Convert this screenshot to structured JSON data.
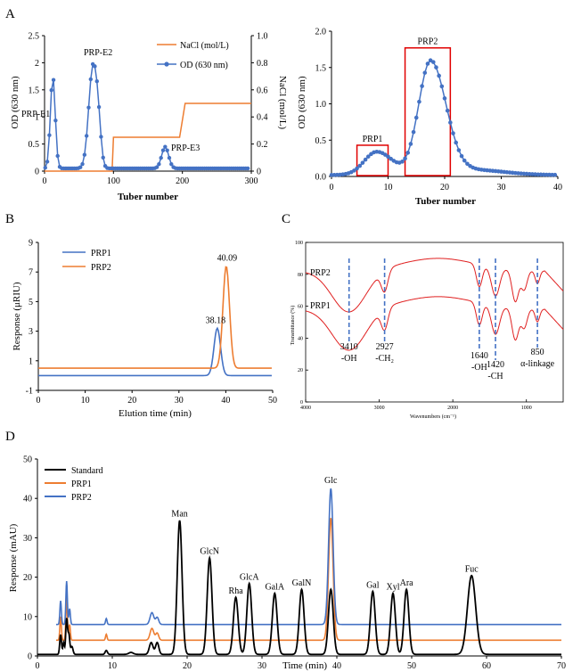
{
  "panels": {
    "A": "A",
    "B": "B",
    "C": "C",
    "D": "D"
  },
  "chart_data": [
    {
      "id": "A1",
      "type": "line",
      "xlabel": "Tuber number",
      "ylabel": "OD (630 nm)",
      "y2label": "NaCl (mol/L)",
      "xlim": [
        0,
        300
      ],
      "ylim": [
        0,
        2.5
      ],
      "y2lim": [
        0,
        1.0
      ],
      "xticks": [
        0,
        100,
        200,
        300
      ],
      "yticks": [
        0,
        0.5,
        1.0,
        1.5,
        2.0,
        2.5
      ],
      "y2ticks": [
        0,
        0.2,
        0.4,
        0.6,
        0.8,
        1.0
      ],
      "legend": [
        "NaCl (mol/L)",
        "OD (630 nm)"
      ],
      "annotations": [
        "PRP-E1",
        "PRP-E2",
        "PRP-E3"
      ],
      "colors": {
        "nacl": "#ED7D31",
        "od": "#4472C4"
      },
      "nacl": {
        "x": [
          0,
          98,
          100,
          196,
          204,
          300
        ],
        "y": [
          0,
          0,
          0.25,
          0.25,
          0.5,
          0.5
        ]
      },
      "od_peaks": [
        {
          "center": 12,
          "amp": 1.7,
          "width": 3.5
        },
        {
          "center": 70,
          "amp": 1.85,
          "width": 6
        },
        {
          "center": 78,
          "amp": 0.55,
          "width": 4
        },
        {
          "center": 175,
          "amp": 0.4,
          "width": 5
        }
      ],
      "od_baseline": 0.05
    },
    {
      "id": "A2",
      "type": "line",
      "xlabel": "Tuber number",
      "ylabel": "OD (630 nm)",
      "xlim": [
        0,
        40
      ],
      "ylim": [
        0,
        2.0
      ],
      "xticks": [
        0,
        10,
        20,
        30,
        40
      ],
      "yticks": [
        0,
        0.5,
        1.0,
        1.5,
        2.0
      ],
      "labels": [
        "PRP1",
        "PRP2"
      ],
      "boxes": [
        {
          "x": [
            4.5,
            10.0
          ],
          "y": [
            0,
            0.43
          ]
        },
        {
          "x": [
            13.0,
            21.0
          ],
          "y": [
            0,
            1.77
          ]
        }
      ],
      "peaks": [
        {
          "center": 8,
          "amp": 0.32,
          "width": 2.2
        },
        {
          "center": 17.5,
          "amp": 1.55,
          "width": 2.1
        }
      ],
      "colors": {
        "line": "#4472C4",
        "box": "#E00000"
      }
    },
    {
      "id": "B",
      "type": "line",
      "xlabel": "Elution time (min)",
      "ylabel": "Response (μRIU)",
      "xlim": [
        0,
        50
      ],
      "ylim": [
        -1,
        9
      ],
      "xticks": [
        0,
        10,
        20,
        30,
        40,
        50
      ],
      "yticks": [
        -1,
        1,
        3,
        5,
        7,
        9
      ],
      "series": [
        {
          "name": "PRP1",
          "baseline": 0,
          "peak": 38.18,
          "height": 3.2,
          "color": "#4472C4"
        },
        {
          "name": "PRP2",
          "baseline": 0.5,
          "peak": 40.09,
          "height": 6.9,
          "color": "#ED7D31"
        }
      ],
      "peak_labels": [
        "38.18",
        "40.09"
      ]
    },
    {
      "id": "C",
      "type": "line",
      "xlabel": "Wavenumbers (cm⁻¹)",
      "ylabel": "Transmittance (%)",
      "xlim": [
        4000,
        500
      ],
      "ylim": [
        0,
        100
      ],
      "xticks": [
        4000,
        3000,
        2000,
        1000
      ],
      "yticks": [
        0,
        20,
        40,
        60,
        80,
        100
      ],
      "series_names": [
        "PRP2",
        "PRP1"
      ],
      "bands": [
        {
          "x": 3410,
          "label1": "3410",
          "label2": "-OH"
        },
        {
          "x": 2927,
          "label1": "2927",
          "label2": "-CH₂"
        },
        {
          "x": 1640,
          "label1": "1640",
          "label2": "-OH"
        },
        {
          "x": 1420,
          "label1": "1420",
          "label2": "-CH"
        },
        {
          "x": 850,
          "label1": "850",
          "label2": "α-linkage"
        }
      ],
      "color": "#E02020"
    },
    {
      "id": "D",
      "type": "line",
      "xlabel": "Time (min)",
      "ylabel": "Response (mAU)",
      "xlim": [
        0,
        70
      ],
      "ylim": [
        0,
        50
      ],
      "xticks": [
        0,
        10,
        20,
        30,
        40,
        50,
        60,
        70
      ],
      "yticks": [
        0,
        10,
        20,
        30,
        40,
        50
      ],
      "legend": [
        "Standard",
        "PRP1",
        "PRP2"
      ],
      "colors": {
        "Standard": "#000000",
        "PRP1": "#ED7D31",
        "PRP2": "#4472C4"
      },
      "peaks": [
        {
          "name": "Man",
          "x": 19.0,
          "y": 34
        },
        {
          "name": "GlcN",
          "x": 23.0,
          "y": 24.5
        },
        {
          "name": "Rha",
          "x": 26.5,
          "y": 14.5
        },
        {
          "name": "GlcA",
          "x": 28.3,
          "y": 18
        },
        {
          "name": "GalA",
          "x": 31.7,
          "y": 15.5
        },
        {
          "name": "GalN",
          "x": 35.3,
          "y": 16.5
        },
        {
          "name": "Glc",
          "x": 39.2,
          "y": 16.5
        },
        {
          "name": "Gal",
          "x": 44.8,
          "y": 16
        },
        {
          "name": "Xyl",
          "x": 47.5,
          "y": 15.5
        },
        {
          "name": "Ara",
          "x": 49.3,
          "y": 16.5
        },
        {
          "name": "Fuc",
          "x": 58.0,
          "y": 20
        }
      ],
      "prp1_baseline": 4,
      "prp2_baseline": 8,
      "prp1_glc": 35,
      "prp2_glc": 42.5
    }
  ]
}
